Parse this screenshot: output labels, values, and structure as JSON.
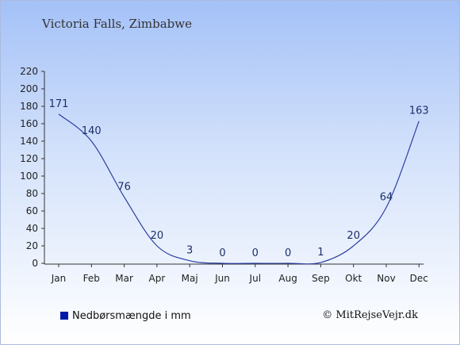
{
  "colors": {
    "line": "#2b3fa0",
    "swatch": "#0019a8",
    "axis": "#333333",
    "label": "#1c2e6b"
  },
  "footer": {
    "legend_label": "Nedbørsmængde i mm",
    "credit": "© MitRejseVejr.dk"
  },
  "chart_data": {
    "type": "line",
    "title": "Victoria Falls, Zimbabwe",
    "categories": [
      "Jan",
      "Feb",
      "Mar",
      "Apr",
      "Maj",
      "Jun",
      "Jul",
      "Aug",
      "Sep",
      "Okt",
      "Nov",
      "Dec"
    ],
    "series": [
      {
        "name": "Nedbørsmængde i mm",
        "values": [
          171,
          140,
          76,
          20,
          3,
          0,
          0,
          0,
          1,
          20,
          64,
          163
        ]
      }
    ],
    "data_labels": [
      "171",
      "140",
      "76",
      "20",
      "3",
      "0",
      "0",
      "0",
      "1",
      "20",
      "64",
      "163"
    ],
    "yticks": [
      0,
      20,
      40,
      60,
      80,
      100,
      120,
      140,
      160,
      180,
      200,
      220
    ],
    "ylim": [
      0,
      220
    ],
    "xlabel": "",
    "ylabel": "",
    "grid": false,
    "legend_position": "bottom-left"
  }
}
